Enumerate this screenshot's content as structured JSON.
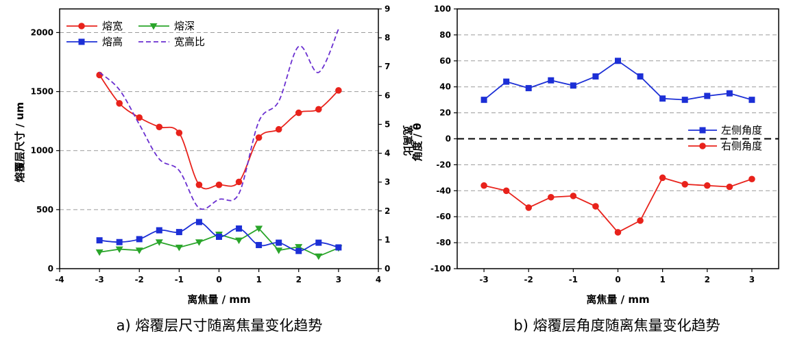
{
  "chart_data": [
    {
      "panel": "a",
      "type": "line",
      "caption": "a) 熔覆层尺寸随离焦量变化趋势",
      "xlabel": "离焦量 / mm",
      "ylabel": "熔覆层尺寸 / um",
      "y2label": "宽高比",
      "xlim": [
        -4,
        4
      ],
      "ylim": [
        0,
        2200
      ],
      "y2lim": [
        0,
        9
      ],
      "x_ticks": [
        -4,
        -3,
        -2,
        -1,
        0,
        1,
        2,
        3,
        4
      ],
      "y_ticks": [
        0,
        500,
        1000,
        1500,
        2000
      ],
      "y2_ticks": [
        0,
        1,
        2,
        3,
        4,
        5,
        6,
        7,
        8,
        9
      ],
      "grid": "horizontal dashed",
      "legend_position": "top-left",
      "x": [
        -3,
        -2.5,
        -2,
        -1.5,
        -1,
        -0.5,
        0,
        0.5,
        1,
        1.5,
        2,
        2.5,
        3
      ],
      "series": [
        {
          "name": "熔宽",
          "axis": "left",
          "color": "#e8221b",
          "marker": "circle",
          "line": "smooth",
          "values": [
            1640,
            1400,
            1280,
            1200,
            1150,
            710,
            710,
            735,
            1110,
            1180,
            1320,
            1350,
            1510
          ]
        },
        {
          "name": "熔深",
          "axis": "left",
          "color": "#2aa52a",
          "marker": "triangle-down",
          "line": "straight",
          "values": [
            140,
            165,
            155,
            225,
            180,
            225,
            290,
            240,
            340,
            155,
            185,
            105,
            175
          ]
        },
        {
          "name": "熔高",
          "axis": "left",
          "color": "#1c2fd6",
          "marker": "square",
          "line": "smooth",
          "values": [
            240,
            225,
            250,
            325,
            310,
            395,
            270,
            340,
            200,
            220,
            150,
            220,
            180
          ]
        },
        {
          "name": "宽高比",
          "axis": "right",
          "color": "#6a2fd0",
          "marker": "none",
          "line": "dashed",
          "values": [
            6.8,
            6.2,
            5.0,
            3.8,
            3.4,
            2.1,
            2.4,
            2.6,
            5.1,
            5.8,
            7.7,
            6.8,
            8.3
          ]
        }
      ]
    },
    {
      "panel": "b",
      "type": "line",
      "caption": "b) 熔覆层角度随离焦量变化趋势",
      "xlabel": "离焦量 / mm",
      "ylabel": "角度 / θ",
      "xlim": [
        -3.6,
        3.6
      ],
      "ylim": [
        -100,
        100
      ],
      "x_ticks": [
        -3,
        -2,
        -1,
        0,
        1,
        2,
        3
      ],
      "y_ticks": [
        -100,
        -80,
        -60,
        -40,
        -20,
        0,
        20,
        40,
        60,
        80,
        100
      ],
      "grid": "horizontal dashed",
      "zero_line": "dashed black",
      "legend_position": "right-middle",
      "x": [
        -3,
        -2.5,
        -2,
        -1.5,
        -1,
        -0.5,
        0,
        0.5,
        1,
        1.5,
        2,
        2.5,
        3
      ],
      "series": [
        {
          "name": "左侧角度",
          "color": "#1c2fd6",
          "marker": "square",
          "values": [
            30,
            44,
            39,
            45,
            41,
            48,
            60,
            48,
            31,
            30,
            33,
            35,
            30
          ]
        },
        {
          "name": "右侧角度",
          "color": "#e8221b",
          "marker": "circle",
          "values": [
            -36,
            -40,
            -53,
            -45,
            -44,
            -52,
            -72,
            -63,
            -30,
            -35,
            -36,
            -37,
            -31
          ]
        }
      ]
    }
  ]
}
